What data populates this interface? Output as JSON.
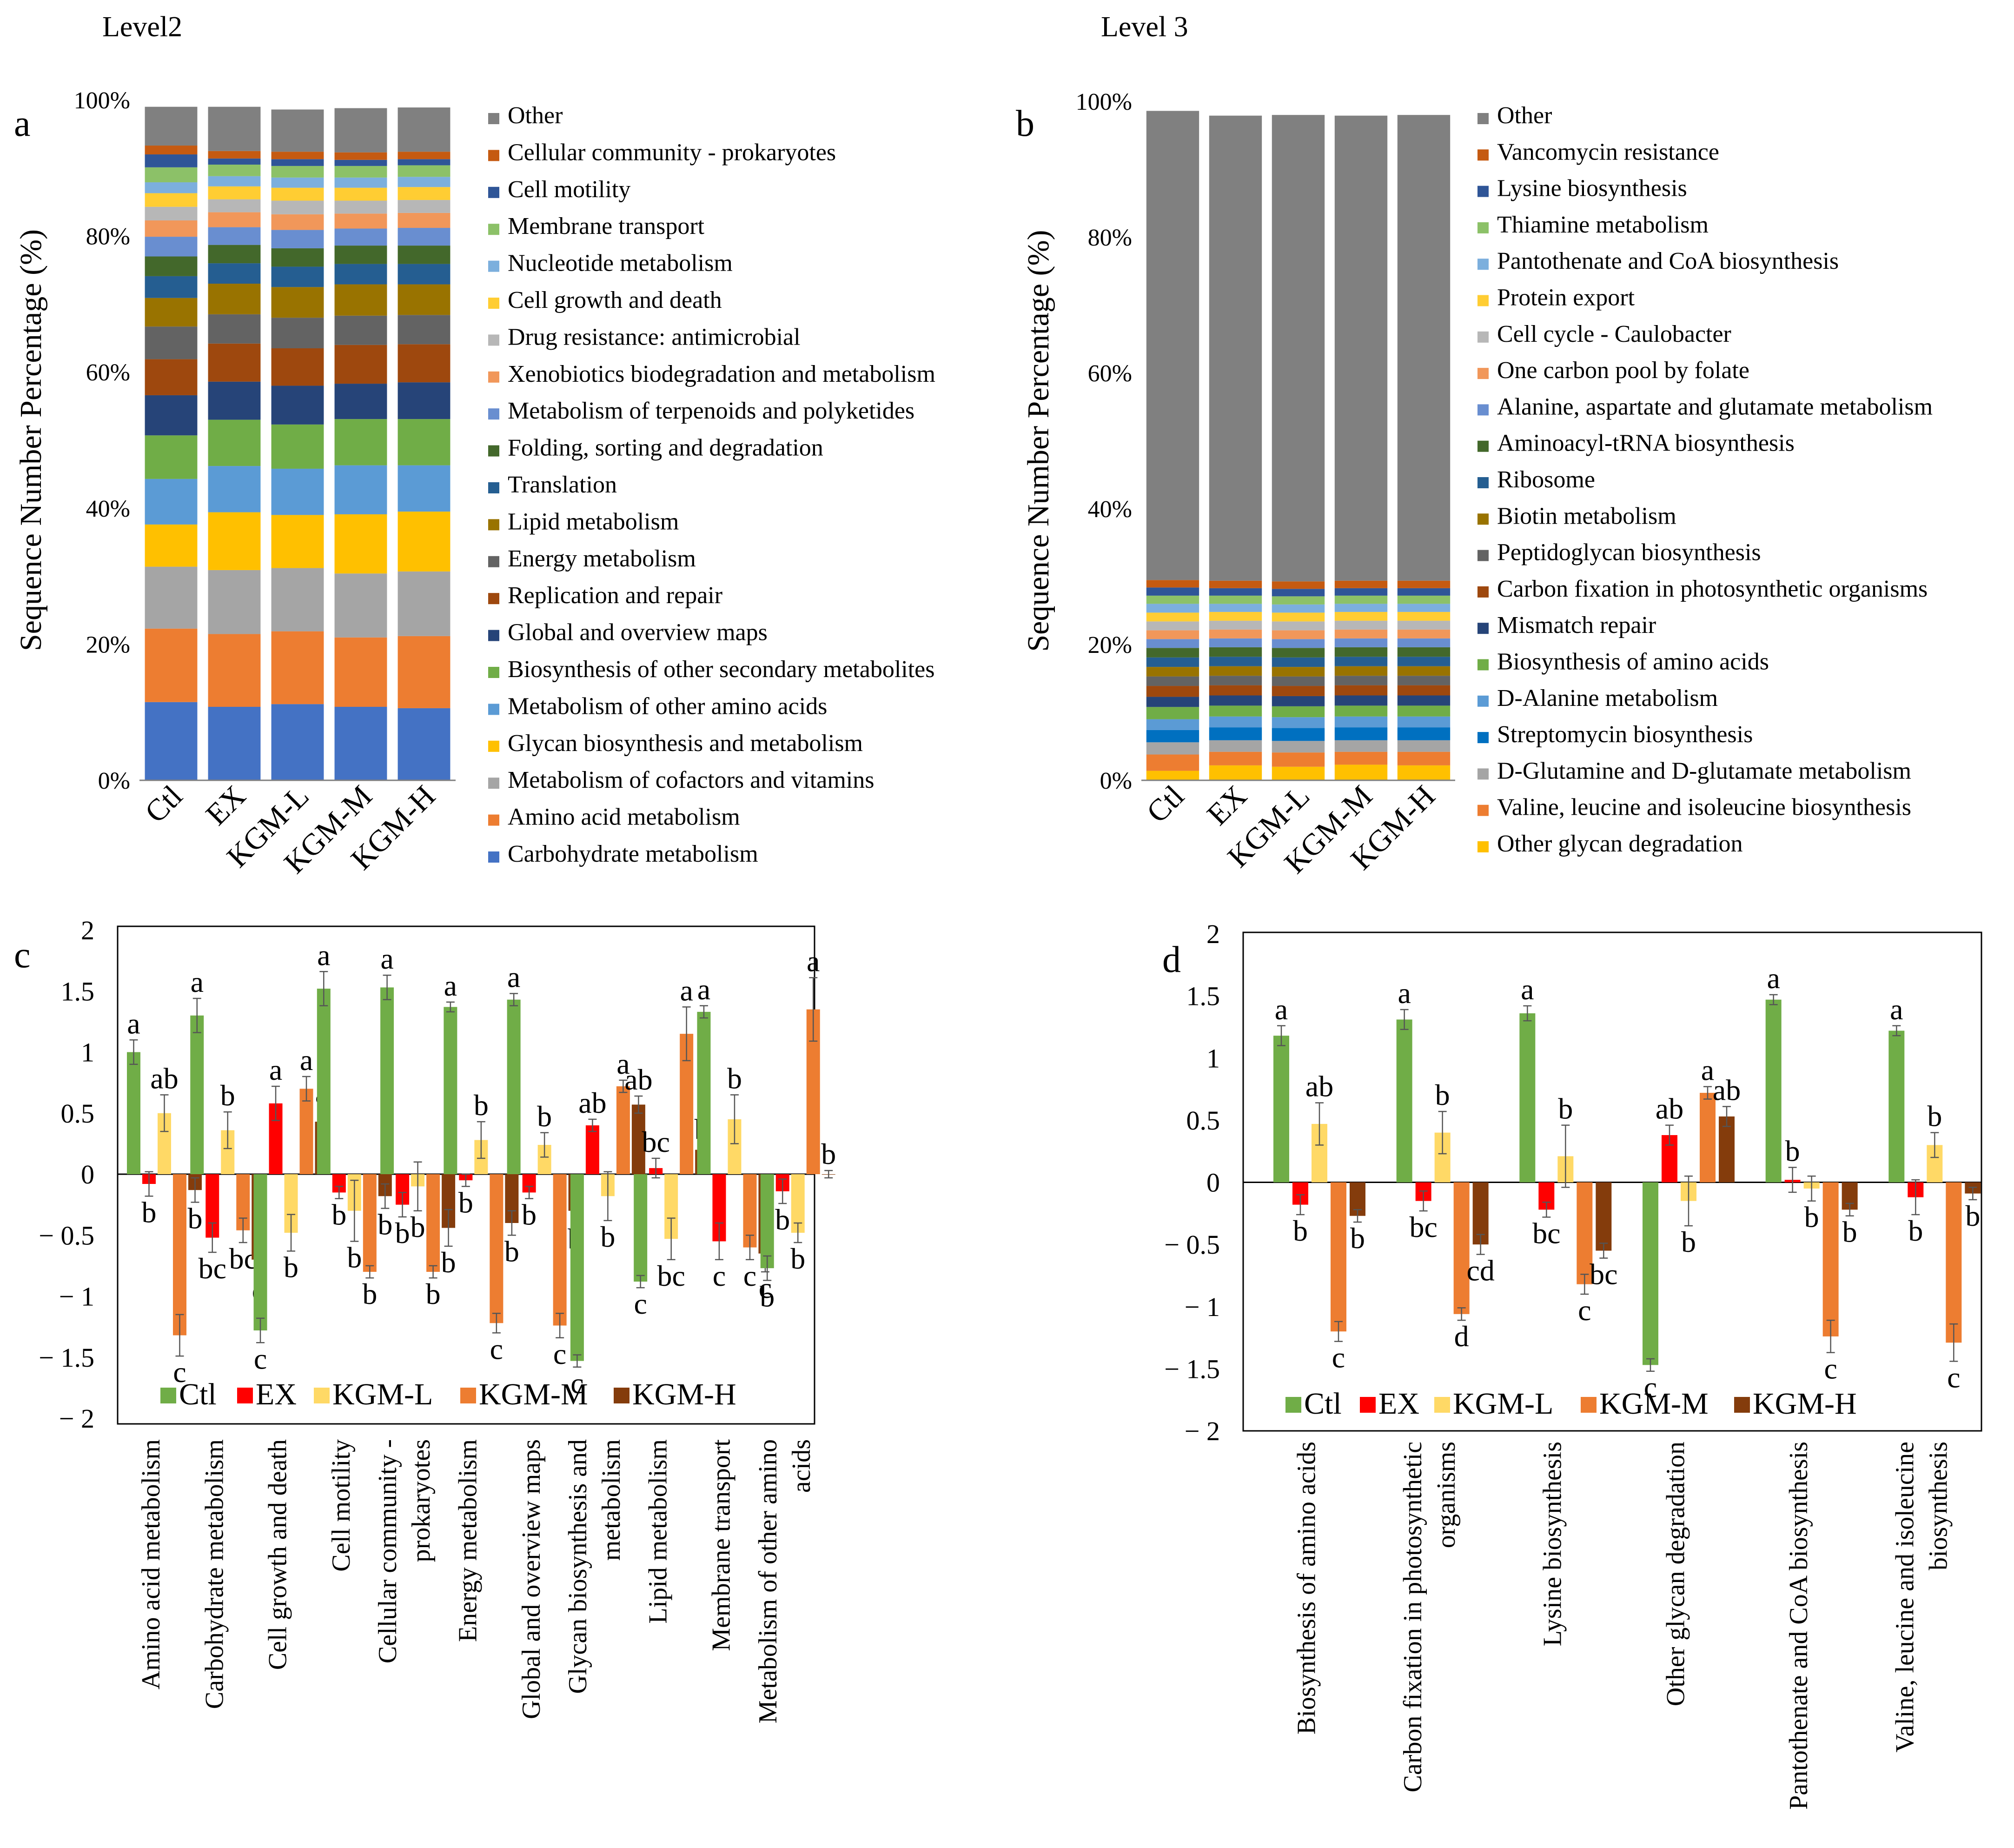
{
  "figure": {
    "level2_title": "Level2",
    "level3_title": "Level 3"
  },
  "colors": {
    "Ctl": "#70AD47",
    "EX": "#FF0000",
    "KGM-L": "#FFD966",
    "KGM-M": "#ED7D31",
    "KGM-H": "#843C0C"
  },
  "chart_data": [
    {
      "panel": "a",
      "type": "bar",
      "stacked": true,
      "title": "Level2",
      "ylabel": "Sequence Number Percentage (%)",
      "ylim": [
        0,
        100
      ],
      "yticks": [
        "0%",
        "20%",
        "40%",
        "60%",
        "80%",
        "100%"
      ],
      "categories": [
        "Ctl",
        "EX",
        "KGM-L",
        "KGM-M",
        "KGM-H"
      ],
      "series": [
        {
          "name": "Carbohydrate metabolism",
          "color": "#4472C4",
          "values": [
            11.5,
            10.8,
            11.2,
            10.8,
            10.6
          ]
        },
        {
          "name": "Amino acid metabolism",
          "color": "#ED7D31",
          "values": [
            10.8,
            10.7,
            10.7,
            10.2,
            10.6
          ]
        },
        {
          "name": "Metabolism of cofactors and vitamins",
          "color": "#A5A5A5",
          "values": [
            9.1,
            9.4,
            9.3,
            9.4,
            9.5
          ]
        },
        {
          "name": "Glycan biosynthesis and metabolism",
          "color": "#FFC000",
          "values": [
            6.2,
            8.5,
            7.8,
            8.7,
            8.8
          ]
        },
        {
          "name": "Metabolism of other amino acids",
          "color": "#5B9BD5",
          "values": [
            6.7,
            6.8,
            6.8,
            7.2,
            6.8
          ]
        },
        {
          "name": "Biosynthesis of other secondary metabolites",
          "color": "#70AD47",
          "values": [
            6.4,
            6.8,
            6.5,
            6.8,
            6.8
          ]
        },
        {
          "name": "Global and overview maps",
          "color": "#264478",
          "values": [
            5.9,
            5.6,
            5.7,
            5.2,
            5.4
          ]
        },
        {
          "name": "Replication and repair",
          "color": "#9E480E",
          "values": [
            5.3,
            5.6,
            5.5,
            5.7,
            5.6
          ]
        },
        {
          "name": "Energy metabolism",
          "color": "#636363",
          "values": [
            4.8,
            4.3,
            4.5,
            4.3,
            4.3
          ]
        },
        {
          "name": "Lipid metabolism",
          "color": "#997300",
          "values": [
            4.2,
            4.5,
            4.5,
            4.6,
            4.5
          ]
        },
        {
          "name": "Translation",
          "color": "#255E91",
          "values": [
            3.2,
            3.0,
            3.0,
            3.0,
            3.0
          ]
        },
        {
          "name": "Folding, sorting and degradation",
          "color": "#43682B",
          "values": [
            2.9,
            2.7,
            2.7,
            2.7,
            2.7
          ]
        },
        {
          "name": "Metabolism of terpenoids and polyketides",
          "color": "#698ED0",
          "values": [
            2.9,
            2.6,
            2.7,
            2.5,
            2.6
          ]
        },
        {
          "name": "Xenobiotics biodegradation and metabolism",
          "color": "#F1975A",
          "values": [
            2.4,
            2.2,
            2.3,
            2.2,
            2.2
          ]
        },
        {
          "name": "Drug resistance: antimicrobial",
          "color": "#B7B7B7",
          "values": [
            2.0,
            1.9,
            2.0,
            1.9,
            1.9
          ]
        },
        {
          "name": "Cell growth and death",
          "color": "#FFCD33",
          "values": [
            2.0,
            1.9,
            1.9,
            1.9,
            1.9
          ]
        },
        {
          "name": "Nucleotide metabolism",
          "color": "#7CAFDD",
          "values": [
            1.6,
            1.5,
            1.5,
            1.5,
            1.5
          ]
        },
        {
          "name": "Membrane transport",
          "color": "#8CC168",
          "values": [
            2.2,
            1.7,
            1.7,
            1.7,
            1.7
          ]
        },
        {
          "name": "Cell motility",
          "color": "#2F5597",
          "values": [
            1.9,
            0.9,
            1.0,
            0.9,
            0.9
          ]
        },
        {
          "name": "Cellular community - prokaryotes",
          "color": "#C55A11",
          "values": [
            1.3,
            1.1,
            1.1,
            1.1,
            1.1
          ]
        },
        {
          "name": "Other",
          "color": "#808080",
          "values": [
            5.7,
            6.5,
            6.2,
            6.5,
            6.5
          ]
        }
      ]
    },
    {
      "panel": "b",
      "type": "bar",
      "stacked": true,
      "title": "Level 3",
      "ylabel": "Sequence Number Percentage (%)",
      "ylim": [
        0,
        100
      ],
      "yticks": [
        "0%",
        "20%",
        "40%",
        "60%",
        "80%",
        "100%"
      ],
      "categories": [
        "Ctl",
        "EX",
        "KGM-L",
        "KGM-M",
        "KGM-H"
      ],
      "series": [
        {
          "name": "Other glycan degradation",
          "color": "#FFC000",
          "values": [
            1.4,
            2.2,
            2.0,
            2.3,
            2.2
          ]
        },
        {
          "name": "Valine, leucine and isoleucine biosynthesis",
          "color": "#ED7D31",
          "values": [
            2.4,
            2.0,
            2.1,
            1.9,
            2.0
          ]
        },
        {
          "name": "D-Glutamine and D-glutamate metabolism",
          "color": "#A5A5A5",
          "values": [
            1.8,
            1.7,
            1.7,
            1.7,
            1.7
          ]
        },
        {
          "name": "Streptomycin biosynthesis",
          "color": "#0070C0",
          "values": [
            1.8,
            1.9,
            1.9,
            1.9,
            1.9
          ]
        },
        {
          "name": "D-Alanine metabolism",
          "color": "#5B9BD5",
          "values": [
            1.6,
            1.6,
            1.6,
            1.6,
            1.6
          ]
        },
        {
          "name": "Biosynthesis of amino acids",
          "color": "#70AD47",
          "values": [
            1.8,
            1.6,
            1.6,
            1.6,
            1.6
          ]
        },
        {
          "name": "Mismatch repair",
          "color": "#264478",
          "values": [
            1.5,
            1.5,
            1.5,
            1.5,
            1.5
          ]
        },
        {
          "name": "Carbon fixation in photosynthetic organisms",
          "color": "#9E480E",
          "values": [
            1.6,
            1.5,
            1.5,
            1.5,
            1.5
          ]
        },
        {
          "name": "Peptidoglycan biosynthesis",
          "color": "#636363",
          "values": [
            1.4,
            1.4,
            1.4,
            1.4,
            1.4
          ]
        },
        {
          "name": "Biotin metabolism",
          "color": "#997300",
          "values": [
            1.4,
            1.4,
            1.4,
            1.4,
            1.4
          ]
        },
        {
          "name": "Ribosome",
          "color": "#255E91",
          "values": [
            1.4,
            1.4,
            1.4,
            1.4,
            1.4
          ]
        },
        {
          "name": "Aminoacyl-tRNA biosynthesis",
          "color": "#43682B",
          "values": [
            1.4,
            1.4,
            1.4,
            1.4,
            1.4
          ]
        },
        {
          "name": "Alanine, aspartate and glutamate metabolism",
          "color": "#698ED0",
          "values": [
            1.3,
            1.3,
            1.3,
            1.3,
            1.3
          ]
        },
        {
          "name": "One carbon pool by folate",
          "color": "#F1975A",
          "values": [
            1.3,
            1.3,
            1.3,
            1.3,
            1.3
          ]
        },
        {
          "name": "Cell cycle - Caulobacter",
          "color": "#B7B7B7",
          "values": [
            1.3,
            1.3,
            1.3,
            1.3,
            1.3
          ]
        },
        {
          "name": "Protein export",
          "color": "#FFCD33",
          "values": [
            1.3,
            1.3,
            1.3,
            1.3,
            1.3
          ]
        },
        {
          "name": "Pantothenate and CoA biosynthesis",
          "color": "#7CAFDD",
          "values": [
            1.3,
            1.2,
            1.2,
            1.2,
            1.2
          ]
        },
        {
          "name": "Thiamine metabolism",
          "color": "#8CC168",
          "values": [
            1.2,
            1.2,
            1.2,
            1.2,
            1.2
          ]
        },
        {
          "name": "Lysine biosynthesis",
          "color": "#2F5597",
          "values": [
            1.2,
            1.1,
            1.1,
            1.1,
            1.1
          ]
        },
        {
          "name": "Vancomycin resistance",
          "color": "#C55A11",
          "values": [
            1.1,
            1.1,
            1.1,
            1.1,
            1.1
          ]
        },
        {
          "name": "Other",
          "color": "#808080",
          "values": [
            69.1,
            68.5,
            68.7,
            68.5,
            68.6
          ]
        }
      ]
    },
    {
      "panel": "c",
      "type": "bar",
      "ylim": [
        -2,
        2
      ],
      "yticks": [
        "2",
        "1.5",
        "1",
        "0.5",
        "0",
        "− 0.5",
        "− 1",
        "− 1.5",
        "− 2"
      ],
      "legend": [
        "Ctl",
        "EX",
        "KGM-L",
        "KGM-M",
        "KGM-H"
      ],
      "categories": [
        [
          "Amino acid metabolism"
        ],
        [
          "Carbohydrate metabolism"
        ],
        [
          "Cell growth and death"
        ],
        [
          "Cell motility"
        ],
        [
          "Cellular community -",
          "prokaryotes"
        ],
        [
          "Energy metabolism"
        ],
        [
          "Global and overview maps"
        ],
        [
          "Glycan biosynthesis and",
          "metabolism"
        ],
        [
          "Lipid metabolism"
        ],
        [
          "Membrane transport"
        ],
        [
          "Metabolism of other amino",
          "acids"
        ]
      ],
      "groups": [
        {
          "values": [
            1.0,
            -0.08,
            0.5,
            -1.32,
            -0.13
          ],
          "errors": [
            0.1,
            0.1,
            0.15,
            0.17,
            0.1
          ],
          "letters": [
            "a",
            "b",
            "ab",
            "c",
            "b"
          ]
        },
        {
          "values": [
            1.3,
            -0.52,
            0.36,
            -0.46,
            -0.7
          ],
          "errors": [
            0.14,
            0.12,
            0.15,
            0.1,
            0.12
          ],
          "letters": [
            "a",
            "bc",
            "b",
            "bc",
            "c"
          ]
        },
        {
          "values": [
            -1.28,
            0.58,
            -0.48,
            0.7,
            0.43
          ],
          "errors": [
            0.1,
            0.14,
            0.15,
            0.1,
            0.1
          ],
          "letters": [
            "c",
            "a",
            "b",
            "a",
            "a"
          ]
        },
        {
          "values": [
            1.52,
            -0.15,
            -0.3,
            -0.8,
            -0.18
          ],
          "errors": [
            0.14,
            0.05,
            0.25,
            0.05,
            0.1
          ],
          "letters": [
            "a",
            "b",
            "b",
            "b",
            "b"
          ]
        },
        {
          "values": [
            1.53,
            -0.25,
            -0.1,
            -0.8,
            -0.44
          ],
          "errors": [
            0.1,
            0.1,
            0.2,
            0.05,
            0.15
          ],
          "letters": [
            "a",
            "b",
            "b",
            "b",
            "b"
          ]
        },
        {
          "values": [
            1.37,
            -0.05,
            0.28,
            -1.22,
            -0.4
          ],
          "errors": [
            0.04,
            0.05,
            0.15,
            0.08,
            0.1
          ],
          "letters": [
            "a",
            "b",
            "b",
            "c",
            "b"
          ]
        },
        {
          "values": [
            1.43,
            -0.15,
            0.24,
            -1.24,
            -0.3
          ],
          "errors": [
            0.05,
            0.05,
            0.1,
            0.1,
            0.1
          ],
          "letters": [
            "a",
            "b",
            "b",
            "c",
            "b"
          ]
        },
        {
          "values": [
            -1.53,
            0.4,
            -0.18,
            0.72,
            0.57
          ],
          "errors": [
            0.05,
            0.05,
            0.2,
            0.05,
            0.07
          ],
          "letters": [
            "c",
            "ab",
            "b",
            "a",
            "ab"
          ]
        },
        {
          "values": [
            -0.88,
            0.05,
            -0.53,
            1.15,
            0.2
          ],
          "errors": [
            0.05,
            0.08,
            0.17,
            0.22,
            0.03
          ],
          "letters": [
            "c",
            "bc",
            "bc",
            "a",
            "b"
          ]
        },
        {
          "values": [
            1.33,
            -0.55,
            0.45,
            -0.6,
            -0.65
          ],
          "errors": [
            0.05,
            0.15,
            0.2,
            0.1,
            0.15
          ],
          "letters": [
            "a",
            "c",
            "b",
            "c",
            "c"
          ]
        },
        {
          "values": [
            -0.77,
            -0.14,
            -0.48,
            1.35,
            0.0
          ],
          "errors": [
            0.1,
            0.1,
            0.08,
            0.26,
            0.03
          ],
          "letters": [
            "b",
            "b",
            "b",
            "a",
            "b"
          ]
        }
      ]
    },
    {
      "panel": "d",
      "type": "bar",
      "ylim": [
        -2,
        2
      ],
      "yticks": [
        "2",
        "1.5",
        "1",
        "0.5",
        "0",
        "− 0.5",
        "− 1",
        "− 1.5",
        "− 2"
      ],
      "legend": [
        "Ctl",
        "EX",
        "KGM-L",
        "KGM-M",
        "KGM-H"
      ],
      "categories": [
        [
          "Biosynthesis of amino acids"
        ],
        [
          "Carbon fixation in photosynthetic",
          "organisms"
        ],
        [
          "Lysine biosynthesis"
        ],
        [
          "Other glycan degradation"
        ],
        [
          "Pantothenate and CoA biosynthesis"
        ],
        [
          "Valine, leucine and isoleucine",
          "biosynthesis"
        ]
      ],
      "groups": [
        {
          "values": [
            1.18,
            -0.18,
            0.47,
            -1.2,
            -0.27
          ],
          "errors": [
            0.08,
            0.08,
            0.17,
            0.08,
            0.05
          ],
          "letters": [
            "a",
            "b",
            "ab",
            "c",
            "b"
          ]
        },
        {
          "values": [
            1.31,
            -0.15,
            0.4,
            -1.06,
            -0.5
          ],
          "errors": [
            0.08,
            0.08,
            0.17,
            0.05,
            0.08
          ],
          "letters": [
            "a",
            "bc",
            "b",
            "d",
            "cd"
          ]
        },
        {
          "values": [
            1.36,
            -0.22,
            0.21,
            -0.82,
            -0.55
          ],
          "errors": [
            0.06,
            0.06,
            0.25,
            0.08,
            0.06
          ],
          "letters": [
            "a",
            "bc",
            "b",
            "c",
            "bc"
          ]
        },
        {
          "values": [
            -1.47,
            0.38,
            -0.15,
            0.72,
            0.53
          ],
          "errors": [
            0.05,
            0.08,
            0.2,
            0.05,
            0.08
          ],
          "letters": [
            "c",
            "ab",
            "b",
            "a",
            "ab"
          ]
        },
        {
          "values": [
            1.47,
            0.02,
            -0.05,
            -1.24,
            -0.22
          ],
          "errors": [
            0.04,
            0.1,
            0.1,
            0.13,
            0.05
          ],
          "letters": [
            "a",
            "b",
            "b",
            "c",
            "b"
          ]
        },
        {
          "values": [
            1.22,
            -0.12,
            0.3,
            -1.29,
            -0.09
          ],
          "errors": [
            0.04,
            0.14,
            0.1,
            0.15,
            0.05
          ],
          "letters": [
            "a",
            "b",
            "b",
            "c",
            "b"
          ]
        }
      ]
    }
  ]
}
